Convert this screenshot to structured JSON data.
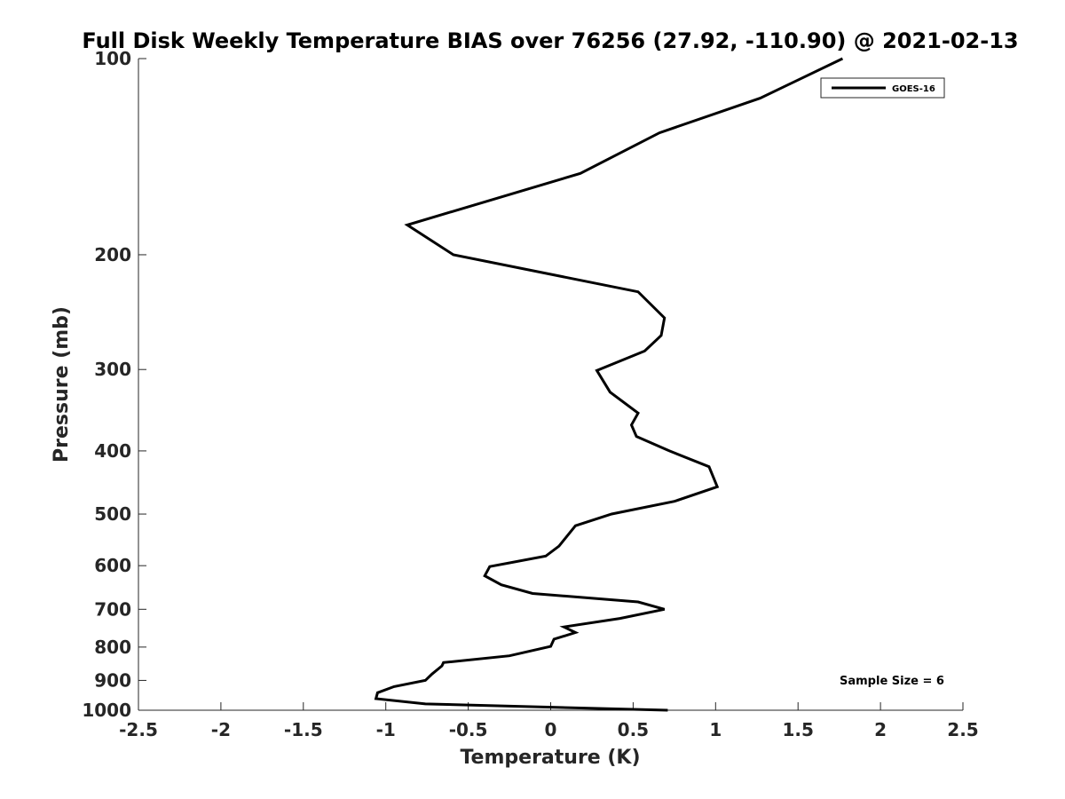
{
  "chart_data": {
    "type": "line",
    "title": "Full Disk Weekly Temperature BIAS over 76256 (27.92, -110.90) @ 2021-02-13",
    "xlabel": "Temperature (K)",
    "ylabel": "Pressure (mb)",
    "xlim": [
      -2.5,
      2.5
    ],
    "ylim": [
      100,
      1000
    ],
    "yscale": "log",
    "yreversed": true,
    "grid": false,
    "legend_position": "top-right",
    "x_ticks": [
      -2.5,
      -2,
      -1.5,
      -1,
      -0.5,
      0,
      0.5,
      1,
      1.5,
      2,
      2.5
    ],
    "x_tick_labels": [
      "-2.5",
      "-2",
      "-1.5",
      "-1",
      "-0.5",
      "0",
      "0.5",
      "1",
      "1.5",
      "2",
      "2.5"
    ],
    "y_ticks": [
      100,
      200,
      300,
      400,
      500,
      600,
      700,
      800,
      900,
      1000
    ],
    "y_tick_labels": [
      "100",
      "200",
      "300",
      "400",
      "500",
      "600",
      "700",
      "800",
      "900",
      "1000"
    ],
    "series": [
      {
        "name": "GOES-16",
        "color": "#000000",
        "points": [
          {
            "x": 1.77,
            "p": 100
          },
          {
            "x": 1.27,
            "p": 115
          },
          {
            "x": 0.66,
            "p": 130
          },
          {
            "x": 0.18,
            "p": 150
          },
          {
            "x": -0.87,
            "p": 180
          },
          {
            "x": -0.59,
            "p": 200
          },
          {
            "x": 0.53,
            "p": 228
          },
          {
            "x": 0.69,
            "p": 250
          },
          {
            "x": 0.67,
            "p": 266
          },
          {
            "x": 0.57,
            "p": 281
          },
          {
            "x": 0.28,
            "p": 301
          },
          {
            "x": 0.36,
            "p": 325
          },
          {
            "x": 0.53,
            "p": 350
          },
          {
            "x": 0.49,
            "p": 365
          },
          {
            "x": 0.52,
            "p": 380
          },
          {
            "x": 0.72,
            "p": 400
          },
          {
            "x": 0.96,
            "p": 423
          },
          {
            "x": 1.01,
            "p": 454
          },
          {
            "x": 0.75,
            "p": 478
          },
          {
            "x": 0.37,
            "p": 500
          },
          {
            "x": 0.15,
            "p": 521
          },
          {
            "x": 0.05,
            "p": 560
          },
          {
            "x": -0.03,
            "p": 580
          },
          {
            "x": -0.37,
            "p": 602
          },
          {
            "x": -0.4,
            "p": 622
          },
          {
            "x": -0.3,
            "p": 642
          },
          {
            "x": -0.11,
            "p": 662
          },
          {
            "x": 0.53,
            "p": 682
          },
          {
            "x": 0.69,
            "p": 700
          },
          {
            "x": 0.42,
            "p": 723
          },
          {
            "x": 0.08,
            "p": 745
          },
          {
            "x": 0.15,
            "p": 760
          },
          {
            "x": 0.02,
            "p": 778
          },
          {
            "x": 0.0,
            "p": 798
          },
          {
            "x": -0.25,
            "p": 825
          },
          {
            "x": -0.65,
            "p": 845
          },
          {
            "x": -0.66,
            "p": 855
          },
          {
            "x": -0.72,
            "p": 880
          },
          {
            "x": -0.76,
            "p": 900
          },
          {
            "x": -0.95,
            "p": 920
          },
          {
            "x": -1.05,
            "p": 940
          },
          {
            "x": -1.06,
            "p": 960
          },
          {
            "x": -0.76,
            "p": 978
          },
          {
            "x": 0.71,
            "p": 1000
          }
        ]
      }
    ],
    "annotations": [
      {
        "text": "Sample Size = 6",
        "position": "bottom-right"
      }
    ]
  }
}
